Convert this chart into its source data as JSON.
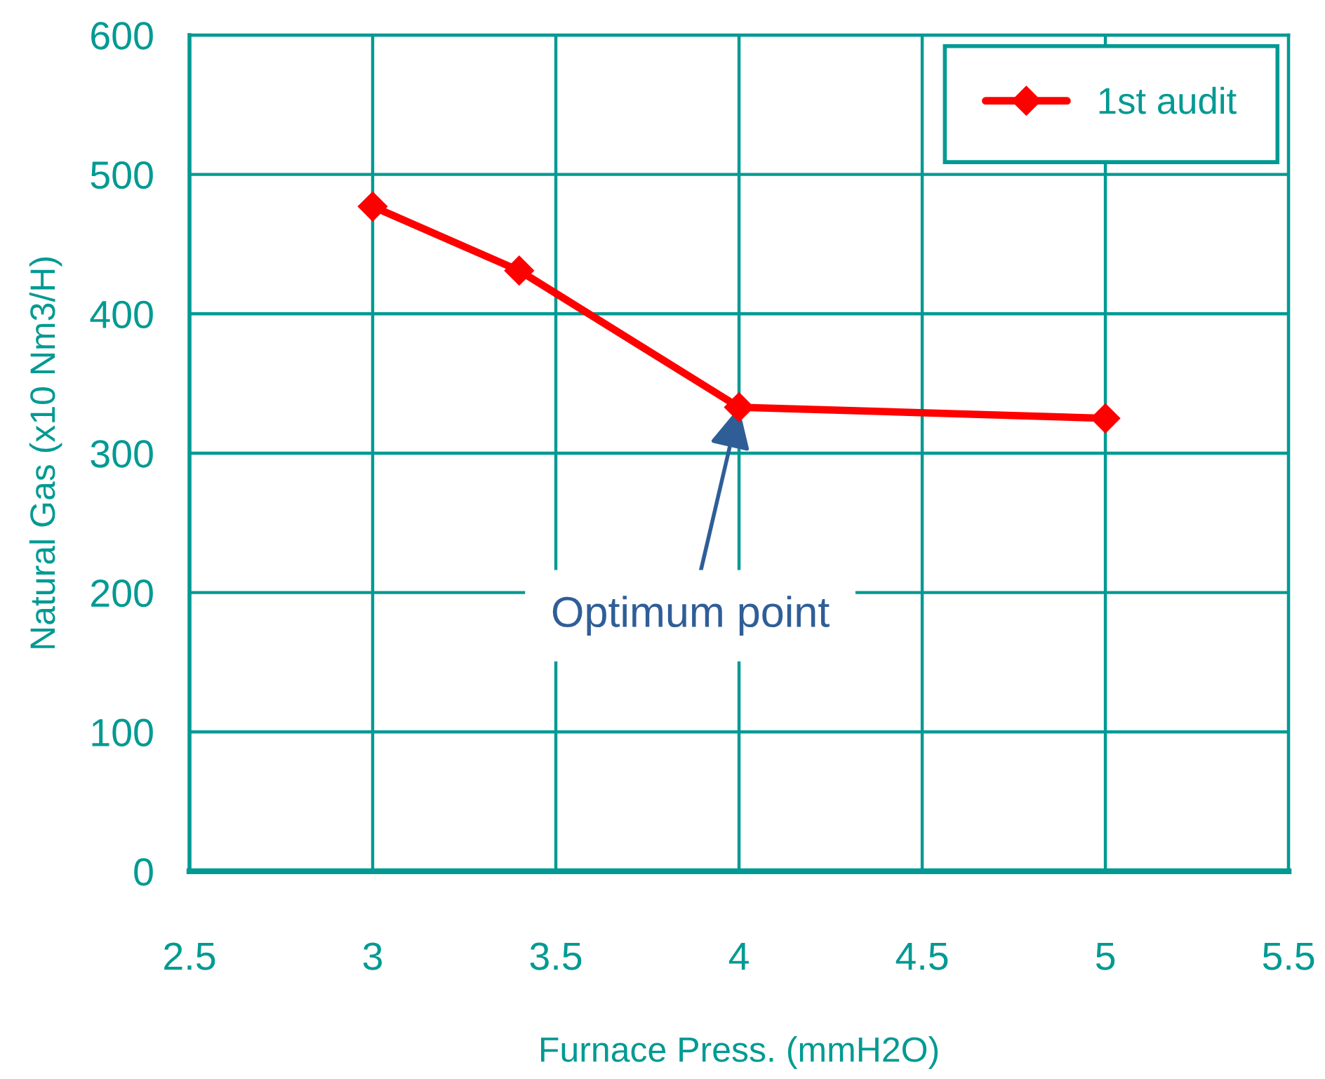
{
  "chart_data": {
    "type": "line",
    "xlabel": "Furnace Press. (mmH2O)",
    "ylabel": "Natural Gas (x10 Nm3/H)",
    "series": [
      {
        "name": "1st audit",
        "color": "#ff0000",
        "x": [
          3,
          3.4,
          4,
          5
        ],
        "values": [
          477,
          431,
          333,
          325
        ]
      }
    ],
    "xlim": [
      2.5,
      5.5
    ],
    "xticks": [
      2.5,
      3,
      3.5,
      4,
      4.5,
      5,
      5.5
    ],
    "ylim": [
      0,
      600
    ],
    "yticks": [
      0,
      100,
      200,
      300,
      400,
      500,
      600
    ],
    "grid": true,
    "legend": "top right",
    "marker": "diamond",
    "line_style": "solid",
    "annotations": [
      {
        "text": "Optimum point",
        "x": 4,
        "y": 333
      }
    ]
  }
}
